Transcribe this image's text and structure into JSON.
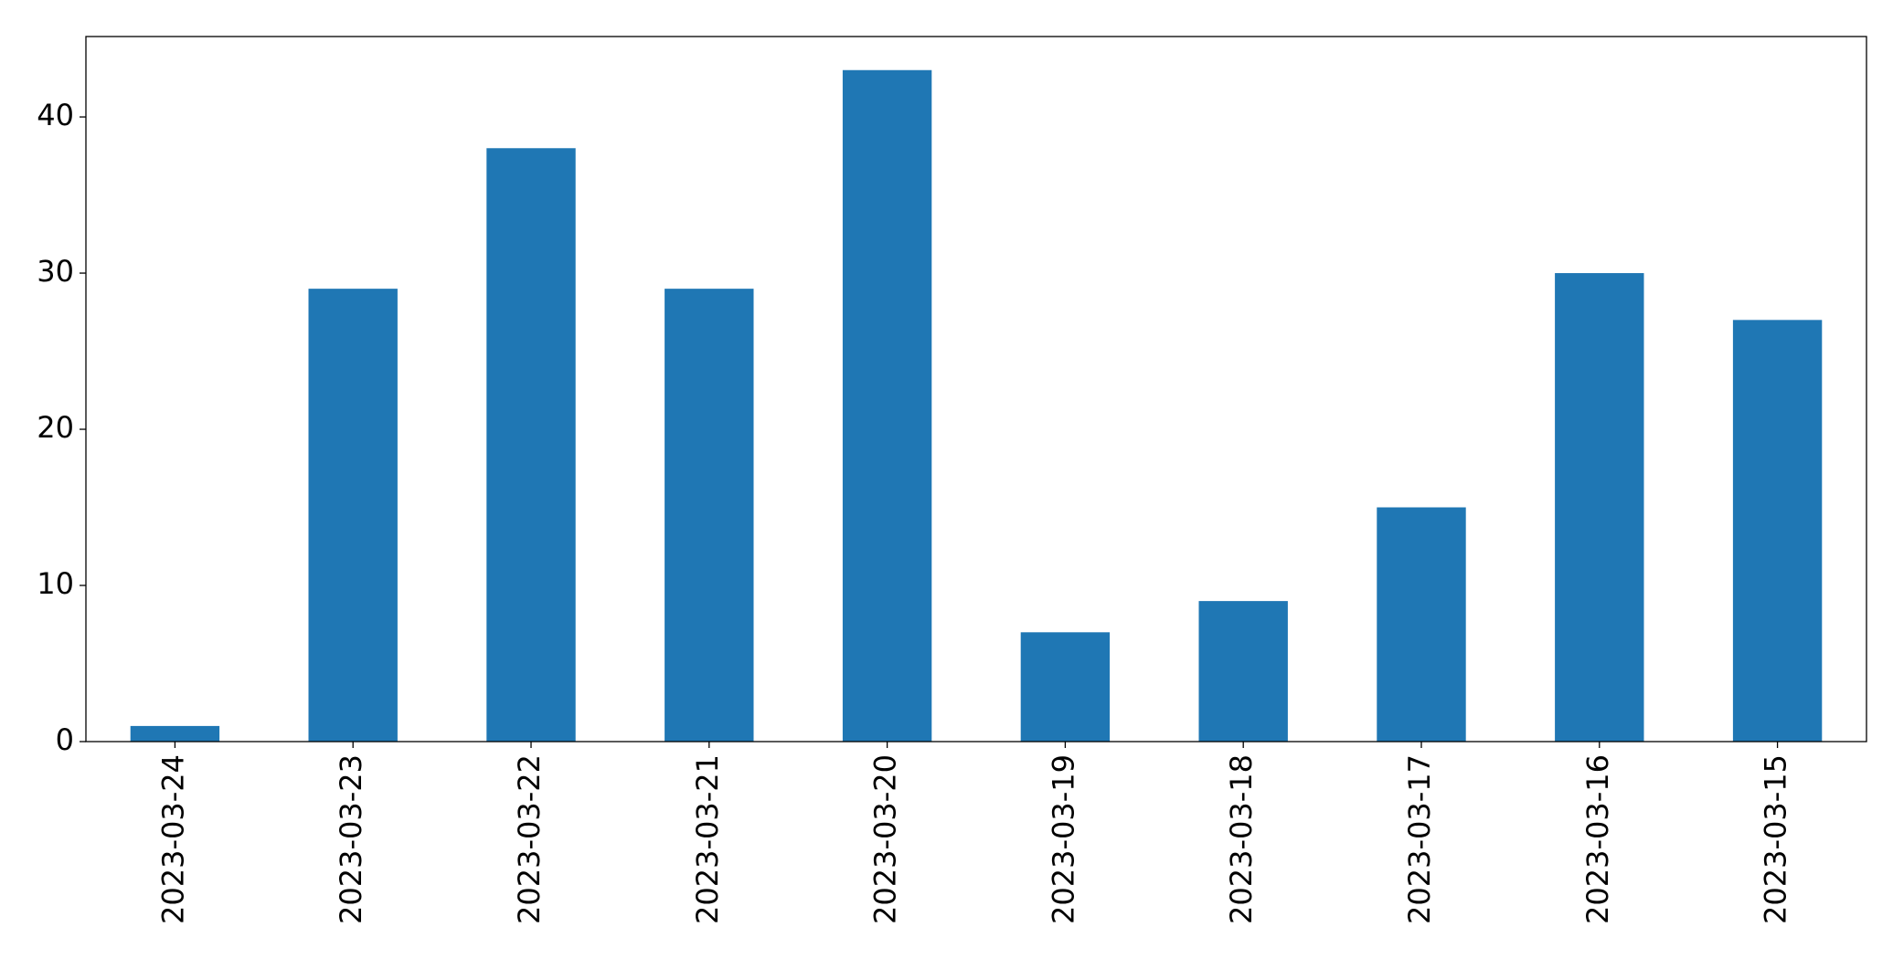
{
  "chart_data": {
    "type": "bar",
    "categories": [
      "2023-03-24",
      "2023-03-23",
      "2023-03-22",
      "2023-03-21",
      "2023-03-20",
      "2023-03-19",
      "2023-03-18",
      "2023-03-17",
      "2023-03-16",
      "2023-03-15"
    ],
    "values": [
      1,
      29,
      38,
      29,
      43,
      7,
      9,
      15,
      30,
      27
    ],
    "color": "#1f77b4",
    "ylim": [
      0,
      45.15
    ],
    "yticks": [
      0,
      10,
      20,
      30,
      40
    ],
    "grid": false
  }
}
